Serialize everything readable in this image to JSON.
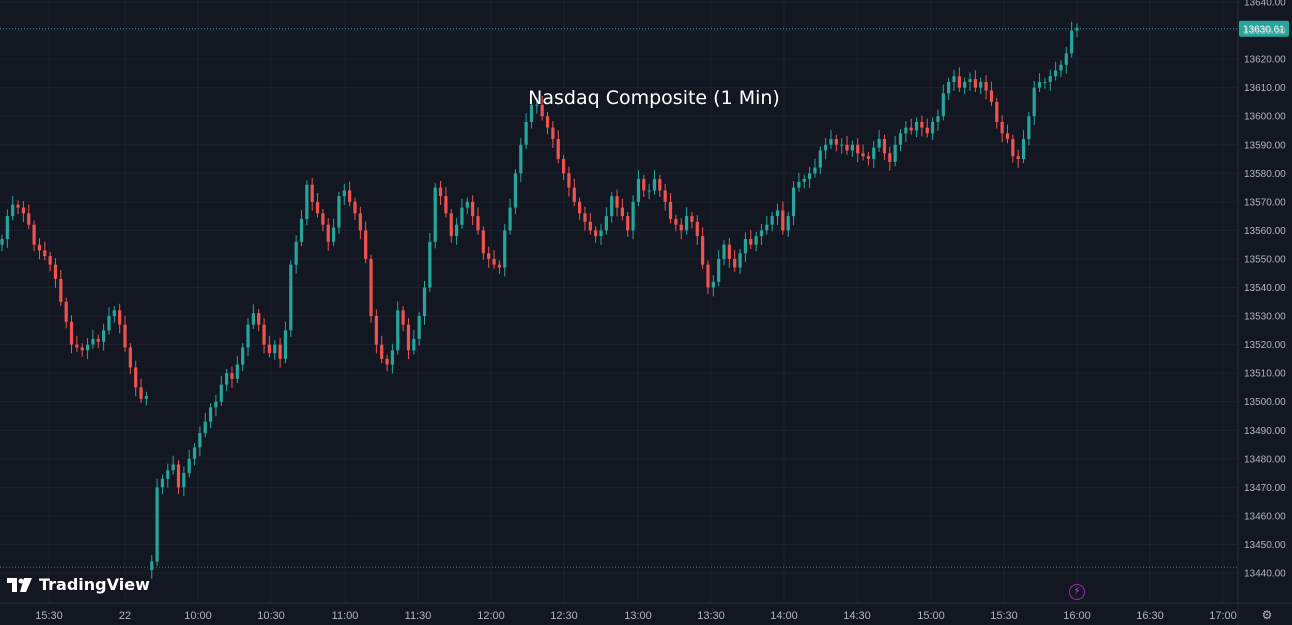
{
  "chart_data": {
    "type": "candlestick",
    "title": "Nasdaq Composite (1 Min)",
    "ylim": [
      13437,
      13644
    ],
    "y_ticks": [
      13440,
      13450,
      13460,
      13470,
      13480,
      13490,
      13500,
      13510,
      13520,
      13530,
      13540,
      13550,
      13560,
      13570,
      13580,
      13590,
      13600,
      13610,
      13620,
      13630,
      13640
    ],
    "y_tick_labels": [
      "13440.00",
      "13450.00",
      "13460.00",
      "13470.00",
      "13480.00",
      "13490.00",
      "13500.00",
      "13510.00",
      "13520.00",
      "13530.00",
      "13540.00",
      "13550.00",
      "13560.00",
      "13570.00",
      "13580.00",
      "13590.00",
      "13600.00",
      "13610.00",
      "13620.00",
      "13630.00",
      "13640.00"
    ],
    "x_tick_labels": [
      "15:30",
      "22",
      "10:00",
      "10:30",
      "11:00",
      "11:30",
      "12:00",
      "12:30",
      "13:00",
      "13:30",
      "14:00",
      "14:30",
      "15:00",
      "15:30",
      "16:00",
      "16:30",
      "17:00"
    ],
    "last_price": 13630.61,
    "last_price_label": "13630.61",
    "low_line": 13442,
    "up_color": "#26a69a",
    "down_color": "#ef5350",
    "grid": true,
    "closes": [
      13557,
      13565,
      13569,
      13568,
      13566,
      13562,
      13555,
      13553,
      13551,
      13548,
      13543,
      13535,
      13528,
      13520,
      13519,
      13518,
      13520,
      13522,
      13521,
      13525,
      13530,
      13532,
      13527,
      13519,
      13512,
      13505,
      13501,
      13502,
      13444,
      13470,
      13473,
      13476,
      13478,
      13470,
      13475,
      13480,
      13484,
      13489,
      13493,
      13498,
      13500,
      13506,
      13510,
      13508,
      13513,
      13519,
      13527,
      13531,
      13527,
      13520,
      13517,
      13520,
      13515,
      13525,
      13548,
      13556,
      13564,
      13576,
      13570,
      13566,
      13562,
      13556,
      13561,
      13572,
      13574,
      13570,
      13566,
      13560,
      13550,
      13530,
      13520,
      13515,
      13513,
      13518,
      13532,
      13527,
      13518,
      13522,
      13530,
      13540,
      13556,
      13575,
      13572,
      13566,
      13558,
      13562,
      13568,
      13570,
      13565,
      13560,
      13552,
      13550,
      13548,
      13547,
      13560,
      13568,
      13580,
      13590,
      13598,
      13604,
      13604,
      13600,
      13596,
      13592,
      13585,
      13580,
      13575,
      13570,
      13566,
      13563,
      13560,
      13558,
      13560,
      13565,
      13572,
      13568,
      13565,
      13560,
      13570,
      13578,
      13574,
      13574,
      13578,
      13574,
      13570,
      13564,
      13562,
      13560,
      13565,
      13563,
      13558,
      13548,
      13540,
      13542,
      13550,
      13555,
      13550,
      13547,
      13552,
      13557,
      13555,
      13558,
      13560,
      13562,
      13565,
      13567,
      13560,
      13565,
      13575,
      13577,
      13578,
      13580,
      13582,
      13588,
      13590,
      13592,
      13590,
      13590,
      13588,
      13590,
      13587,
      13586,
      13585,
      13589,
      13592,
      13587,
      13584,
      13590,
      13594,
      13596,
      13595,
      13598,
      13596,
      13594,
      13598,
      13600,
      13608,
      13612,
      13614,
      13610,
      13612,
      13613,
      13610,
      13612,
      13609,
      13605,
      13598,
      13594,
      13592,
      13586,
      13585,
      13592,
      13600,
      13610,
      13612,
      13612,
      13614,
      13616,
      13618,
      13622,
      13630,
      13631
    ],
    "series": [
      {
        "name": "Nasdaq Composite"
      }
    ]
  },
  "footer": {
    "brand": "TradingView",
    "logo_icon": "tradingview-logo-icon",
    "alert_icon": "lightning-icon",
    "settings_icon": "gear-icon"
  }
}
